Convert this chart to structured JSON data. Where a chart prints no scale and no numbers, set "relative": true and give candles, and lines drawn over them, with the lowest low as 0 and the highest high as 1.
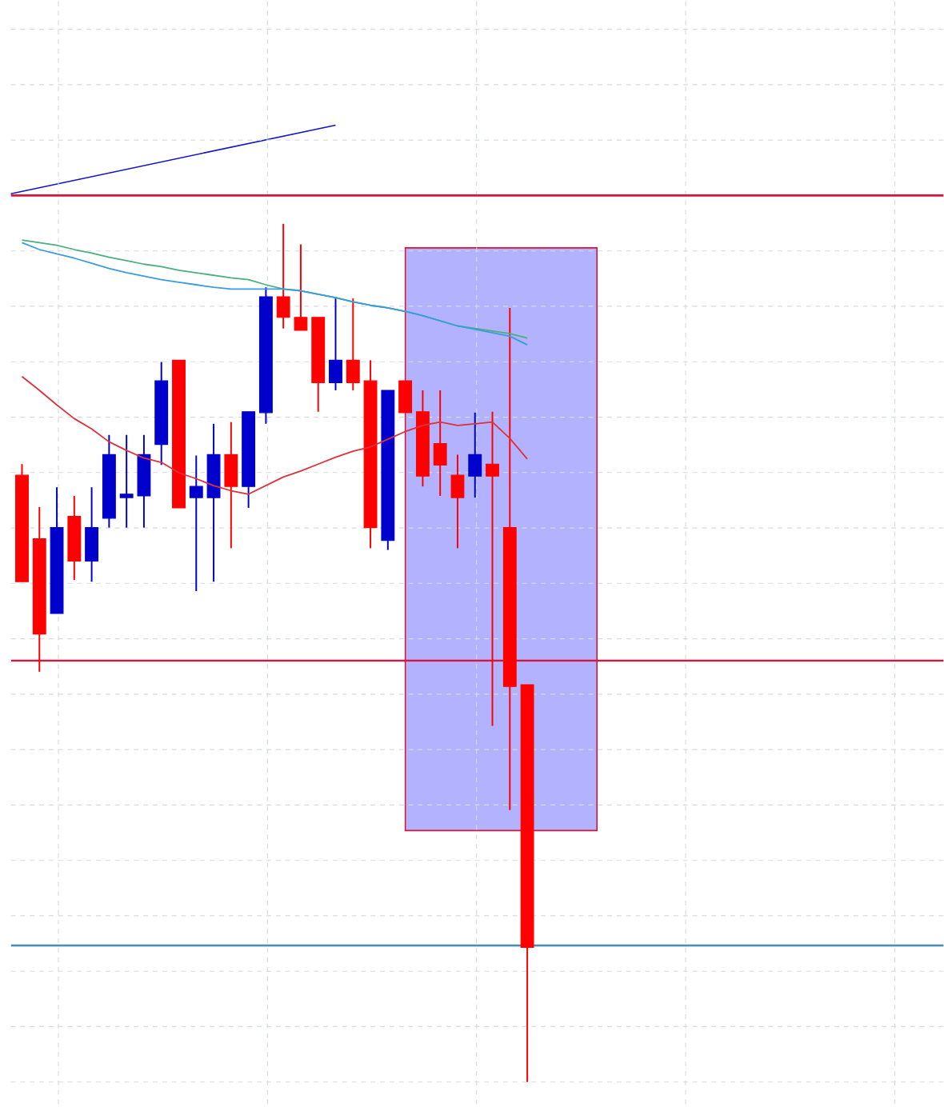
{
  "chart_data": {
    "type": "candlestick",
    "relative": true,
    "grid": true,
    "tick_labels": false,
    "categories": [
      null,
      null,
      null,
      null,
      null,
      null,
      null,
      null,
      null,
      null,
      null,
      null,
      null,
      null,
      null,
      null,
      null,
      null,
      null,
      null,
      null,
      null,
      null,
      null,
      null,
      null,
      null,
      null,
      null,
      null
    ],
    "ohlc": [
      [
        0.707,
        0.72,
        0.583,
        0.583
      ],
      [
        0.633,
        0.67,
        0.478,
        0.522
      ],
      [
        0.546,
        0.693,
        0.546,
        0.646
      ],
      [
        0.659,
        0.683,
        0.585,
        0.607
      ],
      [
        0.607,
        0.693,
        0.583,
        0.646
      ],
      [
        0.657,
        0.754,
        0.646,
        0.731
      ],
      [
        0.681,
        0.754,
        0.646,
        0.685
      ],
      [
        0.683,
        0.754,
        0.646,
        0.731
      ],
      [
        0.743,
        0.839,
        0.719,
        0.817
      ],
      [
        0.841,
        0.841,
        0.669,
        0.669
      ],
      [
        0.681,
        0.73,
        0.572,
        0.694
      ],
      [
        0.681,
        0.767,
        0.583,
        0.731
      ],
      [
        0.731,
        0.769,
        0.622,
        0.694
      ],
      [
        0.694,
        0.781,
        0.669,
        0.781
      ],
      [
        0.78,
        0.926,
        0.767,
        0.915
      ],
      [
        0.915,
        1,
        0.878,
        0.891
      ],
      [
        0.891,
        0.976,
        0.876,
        0.876
      ],
      [
        0.891,
        0.891,
        0.781,
        0.815
      ],
      [
        0.815,
        0.913,
        0.806,
        0.841
      ],
      [
        0.841,
        0.913,
        0.806,
        0.815
      ],
      [
        0.817,
        0.841,
        0.622,
        0.646
      ],
      [
        0.631,
        0.806,
        0.62,
        0.806
      ],
      [
        0.817,
        0.817,
        0.78,
        0.78
      ],
      [
        0.781,
        0.806,
        0.694,
        0.706
      ],
      [
        0.744,
        0.806,
        0.683,
        0.719
      ],
      [
        0.707,
        0.731,
        0.622,
        0.681
      ],
      [
        0.706,
        0.78,
        0.681,
        0.731
      ],
      [
        0.72,
        0.781,
        0.415,
        0.706
      ],
      [
        0.646,
        0.902,
        0.317,
        0.461
      ],
      [
        0.463,
        0.463,
        0,
        0.157
      ]
    ],
    "colors": [
      "#ff0000",
      "#ff0000",
      "#0000cd",
      "#ff0000",
      "#0000cd",
      "#0000cd",
      "#0000cd",
      "#0000cd",
      "#0000cd",
      "#ff0000",
      "#0000cd",
      "#0000cd",
      "#ff0000",
      "#0000cd",
      "#0000cd",
      "#ff0000",
      "#ff0000",
      "#ff0000",
      "#0000cd",
      "#ff0000",
      "#ff0000",
      "#0000cd",
      "#ff0000",
      "#ff0000",
      "#ff0000",
      "#ff0000",
      "#0000cd",
      "#ff0000",
      "#ff0000",
      "#ff0000"
    ],
    "series": [
      {
        "type": "line",
        "color": "#e0303a",
        "values": [
          0.822,
          0.806,
          0.789,
          0.773,
          0.761,
          0.746,
          0.736,
          0.727,
          0.722,
          0.71,
          0.703,
          0.695,
          0.689,
          0.685,
          0.695,
          0.705,
          0.712,
          0.72,
          0.728,
          0.735,
          0.74,
          0.749,
          0.758,
          0.765,
          0.769,
          0.765,
          0.767,
          0.769,
          0.75,
          0.726
        ]
      },
      {
        "type": "line",
        "color": "#4caf7d",
        "values": [
          0.981,
          0.978,
          0.975,
          0.97,
          0.966,
          0.961,
          0.957,
          0.953,
          0.95,
          0.946,
          0.943,
          0.94,
          0.937,
          0.935,
          0.929,
          0.924,
          0.922,
          0.918,
          0.914,
          0.909,
          0.905,
          0.902,
          0.898,
          0.893,
          0.887,
          0.881,
          0.878,
          0.875,
          0.872,
          0.867
        ]
      },
      {
        "type": "line",
        "color": "#3a9be0",
        "values": [
          0.978,
          0.97,
          0.965,
          0.96,
          0.954,
          0.948,
          0.943,
          0.939,
          0.935,
          0.932,
          0.929,
          0.926,
          0.924,
          0.924,
          0.924,
          0.924,
          0.922,
          0.918,
          0.914,
          0.909,
          0.905,
          0.902,
          0.898,
          0.893,
          0.887,
          0.881,
          0.877,
          0.873,
          0.869,
          0.859
        ]
      }
    ],
    "ref_lines": [
      {
        "axis": "y",
        "value": 1.033,
        "color": "#dc143c"
      },
      {
        "axis": "y",
        "value": 0.491,
        "color": "#dc143c"
      },
      {
        "axis": "y",
        "value": 0.159,
        "color": "#4a8fb0"
      }
    ]
  }
}
